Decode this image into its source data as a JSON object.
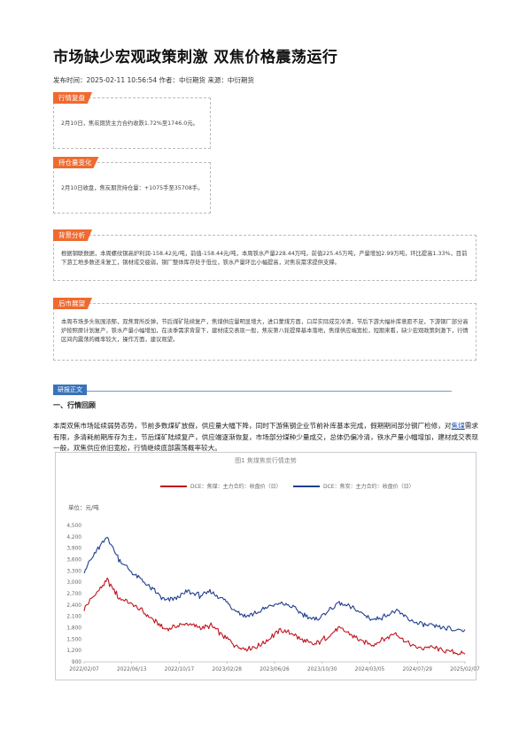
{
  "article": {
    "title": "市场缺少宏观政策刺激 双焦价格震荡运行",
    "meta": "发布时间：2025-02-11 10:56:54 作者：中衍期货 来源：中衍期货"
  },
  "boxes": [
    {
      "tag": "行情复盘",
      "text": "2月10日，焦炭期货主力合约收跌1.72%至1746.0元。"
    },
    {
      "tag": "持仓量变化",
      "text": "2月10日收盘，焦炭期货持仓量：+1075手至35708手。"
    },
    {
      "tag": "背景分析",
      "text": "根据钢联数据，本周螺纹钢高炉利润-158.42元/吨，前值-158.44元/吨，本周铁水产量228.44万吨，前值225.45万吨，产量增加2.99万吨，环比提高1.33%，目前下游工地多数还未复工，钢材成交疲弱，钢厂整体库存处于低位，铁水产量环比小幅提高，对焦炭需求提供支撑。"
    },
    {
      "tag": "后市展望",
      "text": "本周市场多头氛围浓郁，双焦育所反弹，节后煤矿陆续复产，焦煤供应量明显增大，进口蒙煤方面，口岸实际成交冷清，节后下游大幅补库意愿不足，下游钢厂部分高炉按照原计划复产，铁水产量小幅增加，在淡季需求背景下，建材成交表现一般，焦炭第八轮提降基本落地，焦煤供应端宽松，短期来看，缺少宏观政策刺激下，行情区间内震荡的概率较大，操作方面，建议观望。"
    }
  ],
  "section": {
    "tag": "研报正文",
    "heading": "一、行情回顾",
    "para_before": "本周双焦市场延续弱势态势，节前多数煤矿放假，供应量大幅下降，同时下游焦钢企业节前补库基本完成，假期期间部分钢厂检修，对",
    "para_link": "焦煤",
    "para_after": "需求有限，多清耗前期库存为主，节后煤矿陆续复产，供应端逐渐恢复，市场部分煤种少量成交，总体仍偏冷清，铁水产量小幅增加，建材成交表现一般，双焦供应依旧宽松，行情继续底部震荡概率较大。"
  },
  "chart_title": "图1 焦煤焦炭行情走势",
  "chart_data": {
    "type": "line",
    "title": "图1 焦煤焦炭行情走势",
    "ylabel": "单位：元/吨",
    "ylim": [
      900,
      4500
    ],
    "yticks": [
      900,
      1200,
      1500,
      1800,
      2100,
      2400,
      2700,
      3000,
      3300,
      3600,
      3900,
      4200,
      4500
    ],
    "xticks": [
      "2022/02/07",
      "2022/06/13",
      "2022/10/17",
      "2023/02/28",
      "2023/06/26",
      "2023/10/30",
      "2024/03/05",
      "2024/07/29",
      "2025/02/07"
    ],
    "legend_position": "top-center",
    "series": [
      {
        "name": "DCE：焦煤：主力合约：收盘价（日）",
        "color": "#c0141f",
        "values": [
          2300,
          2700,
          3050,
          2600,
          2450,
          2250,
          2000,
          1750,
          1850,
          1900,
          1800,
          1850,
          1600,
          1350,
          1250,
          1300,
          1500,
          1750,
          1650,
          1450,
          1350,
          1550,
          1800,
          1650,
          1450,
          1350,
          1500,
          1650,
          1400,
          1250,
          1300,
          1200,
          1150,
          1100
        ]
      },
      {
        "name": "DCE：焦炭：主力合约：收盘价（日）",
        "color": "#1f3f8f",
        "values": [
          3300,
          3800,
          4200,
          3600,
          3300,
          3050,
          2800,
          2500,
          2600,
          2750,
          2650,
          2750,
          2550,
          2300,
          2100,
          2200,
          2350,
          2450,
          2350,
          2150,
          2000,
          2200,
          2450,
          2350,
          2200,
          2000,
          2100,
          2250,
          2050,
          1900,
          1850,
          1800,
          1750,
          1750
        ]
      }
    ]
  }
}
